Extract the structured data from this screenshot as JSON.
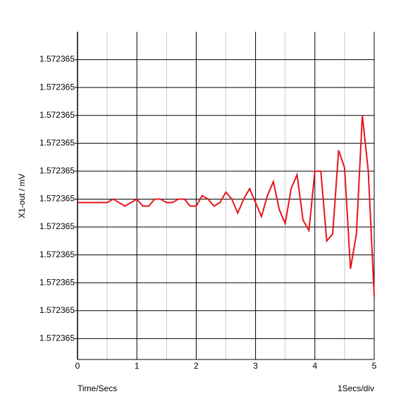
{
  "chart_data": {
    "type": "line",
    "y_label": "X1-out / mV",
    "x_label": "Time/Secs",
    "x_scale_note": "1Secs/div",
    "xlim": [
      0,
      5
    ],
    "xticks": [
      0,
      1,
      2,
      3,
      4,
      5
    ],
    "x_minor_ticks": [
      0.5,
      1.5,
      2.5,
      3.5,
      4.5
    ],
    "ylim": [
      1.57236454,
      1.57236548
    ],
    "yticks": [
      {
        "value": 1.5723646,
        "label": "1.572365"
      },
      {
        "value": 1.57236468,
        "label": "1.572365"
      },
      {
        "value": 1.57236476,
        "label": "1.572365"
      },
      {
        "value": 1.57236484,
        "label": "1.572365"
      },
      {
        "value": 1.57236492,
        "label": "1.572365"
      },
      {
        "value": 1.572365,
        "label": "1.572365"
      },
      {
        "value": 1.57236508,
        "label": "1.572365"
      },
      {
        "value": 1.57236516,
        "label": "1.572365"
      },
      {
        "value": 1.57236524,
        "label": "1.572365"
      },
      {
        "value": 1.57236532,
        "label": "1.572365"
      },
      {
        "value": 1.5723654,
        "label": "1.572365"
      }
    ],
    "grid": true,
    "x": [
      0,
      0.1,
      0.2,
      0.3,
      0.4,
      0.5,
      0.6,
      0.7,
      0.8,
      0.9,
      1,
      1.1,
      1.2,
      1.3,
      1.4,
      1.5,
      1.6,
      1.7,
      1.8,
      1.9,
      2,
      2.1,
      2.2,
      2.3,
      2.4,
      2.5,
      2.6,
      2.7,
      2.8,
      2.9,
      3,
      3.1,
      3.2,
      3.3,
      3.4,
      3.5,
      3.6,
      3.7,
      3.8,
      3.9,
      4,
      4.1,
      4.2,
      4.3,
      4.4,
      4.5,
      4.6,
      4.7,
      4.8,
      4.9,
      5
    ],
    "series": [
      {
        "name": "X1-out",
        "color": "#e8141b",
        "values": [
          1.57236499,
          1.57236499,
          1.57236499,
          1.57236499,
          1.57236499,
          1.57236499,
          1.572365,
          1.57236499,
          1.57236498,
          1.57236499,
          1.572365,
          1.57236498,
          1.57236498,
          1.572365,
          1.572365,
          1.57236499,
          1.57236499,
          1.572365,
          1.572365,
          1.57236498,
          1.57236498,
          1.57236501,
          1.572365,
          1.57236498,
          1.57236499,
          1.57236502,
          1.572365,
          1.57236496,
          1.572365,
          1.57236503,
          1.57236499,
          1.57236495,
          1.57236501,
          1.57236505,
          1.57236497,
          1.57236493,
          1.57236503,
          1.57236507,
          1.57236494,
          1.57236491,
          1.57236508,
          1.57236508,
          1.57236488,
          1.5723649,
          1.57236514,
          1.57236509,
          1.5723648,
          1.5723649,
          1.57236524,
          1.57236508,
          1.57236472
        ]
      }
    ]
  }
}
